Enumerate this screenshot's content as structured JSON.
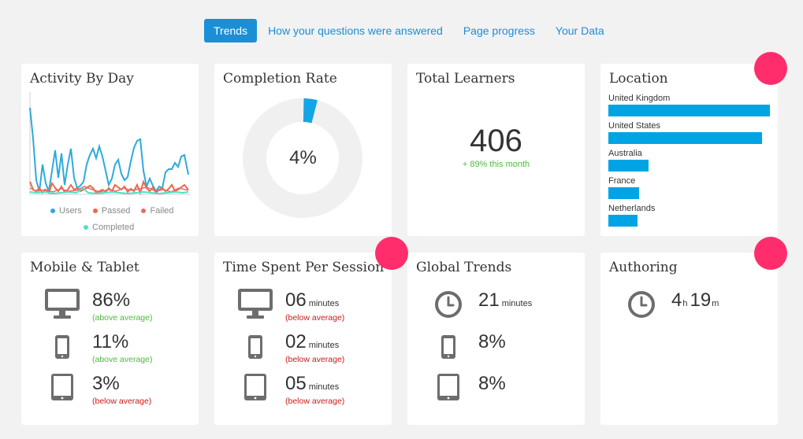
{
  "nav": {
    "tabs": [
      "Trends",
      "How your questions were answered",
      "Page progress",
      "Your Data"
    ]
  },
  "activity": {
    "title": "Activity By Day",
    "legend": [
      "Users",
      "Passed",
      "Failed",
      "Completed"
    ],
    "colors": {
      "users": "#2eaadc",
      "passed": "#ea6b47",
      "failed": "#e86a6e",
      "completed": "#4ee2c4"
    }
  },
  "completion": {
    "title": "Completion Rate",
    "value": "4%",
    "percent": 4,
    "color": "#14a5e6"
  },
  "total": {
    "title": "Total Learners",
    "value": "406",
    "delta": "+ 89% this month"
  },
  "location": {
    "title": "Location",
    "items": [
      {
        "label": "United Kingdom",
        "share": 1.0
      },
      {
        "label": "United States",
        "share": 0.95
      },
      {
        "label": "Australia",
        "share": 0.25
      },
      {
        "label": "France",
        "share": 0.19
      },
      {
        "label": "Netherlands",
        "share": 0.18
      }
    ]
  },
  "mobile": {
    "title": "Mobile & Tablet",
    "rows": [
      {
        "icon": "desktop-icon",
        "value": "86%",
        "note": "(above average)"
      },
      {
        "icon": "phone-icon",
        "value": "11%",
        "note": "(above average)"
      },
      {
        "icon": "tablet-icon",
        "value": "3%",
        "note": "(below average)"
      }
    ]
  },
  "time": {
    "title": "Time Spent Per Session",
    "unit": "minutes",
    "rows": [
      {
        "icon": "desktop-icon",
        "value": "06",
        "note": "(below average)"
      },
      {
        "icon": "phone-icon",
        "value": "02",
        "note": "(below average)"
      },
      {
        "icon": "tablet-icon",
        "value": "05",
        "note": "(below average)"
      }
    ]
  },
  "global": {
    "title": "Global Trends",
    "rows": [
      {
        "icon": "clock-icon",
        "value": "21",
        "unit": "minutes"
      },
      {
        "icon": "phone-icon",
        "value": "8%"
      },
      {
        "icon": "tablet-icon",
        "value": "8%"
      }
    ]
  },
  "authoring": {
    "title": "Authoring",
    "hours": "4",
    "h": "h",
    "minutes": "19",
    "m": "m"
  }
}
